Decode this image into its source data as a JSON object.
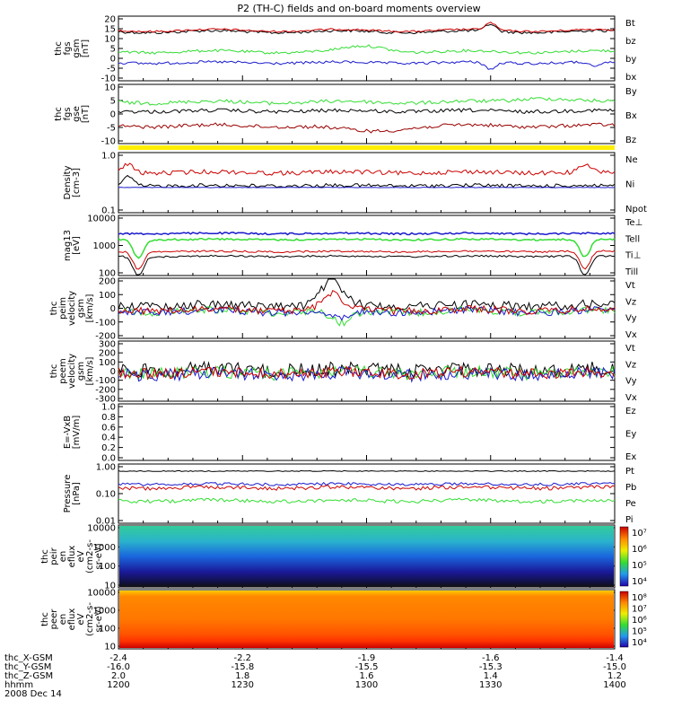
{
  "title": "P2 (TH-C) fields and on-board moments overview",
  "colors": {
    "black": "#000000",
    "red": "#cc0000",
    "green": "#33dd33",
    "blue": "#1a1acc",
    "yellow": "#ffee00",
    "darkred": "#990000"
  },
  "chart_data": {
    "type": "line",
    "x_range": [
      1200,
      1400
    ],
    "x_ticks": [
      1200,
      1230,
      1300,
      1330,
      1400
    ],
    "panels": [
      {
        "ylabel": [
          "thc",
          "fgs",
          "gsm",
          "[nT]"
        ],
        "ticks": [
          "20",
          "15",
          "10",
          "5",
          "0",
          "-5",
          "-10"
        ],
        "ylim": [
          -10,
          20
        ],
        "legend": [
          {
            "text": "Bt",
            "color": "#000000"
          },
          {
            "text": "bz",
            "color": "#cc0000"
          },
          {
            "text": "by",
            "color": "#33dd33"
          },
          {
            "text": "bx",
            "color": "#1a1acc"
          }
        ]
      },
      {
        "ylabel": [
          "thc",
          "fgs",
          "gse",
          "[nT]"
        ],
        "ticks": [
          "10",
          "5",
          "0",
          "-5",
          "-10"
        ],
        "ylim": [
          -13,
          12
        ],
        "legend": [
          {
            "text": "By",
            "color": "#33dd33"
          },
          {
            "text": "Bx",
            "color": "#000000"
          },
          {
            "text": "Bz",
            "color": "#990000"
          }
        ]
      },
      {
        "ylabel": [
          "Density",
          "[cm-3]"
        ],
        "ticks": [
          "1.0",
          "0.1"
        ],
        "ylim": [
          0.1,
          1.2
        ],
        "log": true,
        "legend": [
          {
            "text": "Ne",
            "color": "#cc0000"
          },
          {
            "text": "Ni",
            "color": "#000000"
          },
          {
            "text": "Npot",
            "color": "#1a1acc"
          }
        ]
      },
      {
        "ylabel": [
          "mag13",
          "[eV]"
        ],
        "ticks": [
          "10000",
          "1000",
          "100"
        ],
        "ylim": [
          100,
          10000
        ],
        "log": true,
        "legend": [
          {
            "text": "Te⊥",
            "color": "#cc0000"
          },
          {
            "text": "Tell",
            "color": "#000000"
          },
          {
            "text": "Ti⊥",
            "color": "#1a1acc"
          },
          {
            "text": "Till",
            "color": "#33dd33"
          }
        ]
      },
      {
        "ylabel": [
          "thc",
          "peim",
          "velocity",
          "gsm",
          "[km/s]"
        ],
        "ticks": [
          "200",
          "100",
          "0",
          "-100",
          "-200"
        ],
        "ylim": [
          -200,
          200
        ],
        "legend": [
          {
            "text": "Vt",
            "color": "#000000"
          },
          {
            "text": "Vz",
            "color": "#cc0000"
          },
          {
            "text": "Vy",
            "color": "#33dd33"
          },
          {
            "text": "Vx",
            "color": "#1a1acc"
          }
        ]
      },
      {
        "ylabel": [
          "thc",
          "peem",
          "velocity",
          "gsm",
          "[km/s]"
        ],
        "ticks": [
          "300",
          "200",
          "100",
          "0",
          "-100",
          "-200",
          "-300"
        ],
        "ylim": [
          -300,
          300
        ],
        "legend": [
          {
            "text": "Vt",
            "color": "#000000"
          },
          {
            "text": "Vz",
            "color": "#cc0000"
          },
          {
            "text": "Vy",
            "color": "#33dd33"
          },
          {
            "text": "Vx",
            "color": "#1a1acc"
          }
        ]
      },
      {
        "ylabel": [
          "E=-VxB",
          "[mV/m]"
        ],
        "ticks": [
          "1.0",
          "0.8",
          "0.6",
          "0.4",
          "0.2",
          "0.0"
        ],
        "ylim": [
          0,
          1
        ],
        "legend": [
          {
            "text": "Ez",
            "color": "#cc0000"
          },
          {
            "text": "Ey",
            "color": "#33dd33"
          },
          {
            "text": "Ex",
            "color": "#1a1acc"
          }
        ]
      },
      {
        "ylabel": [
          "Pressure",
          "[nPa]"
        ],
        "ticks": [
          "1.00",
          "0.10",
          "0.01"
        ],
        "ylim": [
          0.01,
          1
        ],
        "log": true,
        "legend": [
          {
            "text": "Pt",
            "color": "#000000"
          },
          {
            "text": "Pb",
            "color": "#cc0000"
          },
          {
            "text": "Pe",
            "color": "#33dd33"
          },
          {
            "text": "Pi",
            "color": "#1a1acc"
          }
        ]
      },
      {
        "ylabel": [
          "thc",
          "peir",
          "en",
          "eflux",
          "eV",
          "(cm2-s-",
          "sr-eV)"
        ],
        "ticks": [
          "10000",
          "1000",
          "100",
          "10"
        ],
        "ylim": [
          10,
          15000
        ],
        "log": true,
        "spectrogram": "ion",
        "colorbar": [
          "10⁷",
          "10⁶",
          "10⁵",
          "10⁴"
        ]
      },
      {
        "ylabel": [
          "thc",
          "peer",
          "en",
          "eflux",
          "eV",
          "(cm2-s-",
          "sr-eV)"
        ],
        "ticks": [
          "10000",
          "1000",
          "100",
          "10"
        ],
        "ylim": [
          10,
          15000
        ],
        "log": true,
        "spectrogram": "electron",
        "colorbar": [
          "10⁸",
          "10⁷",
          "10⁶",
          "10⁵",
          "10⁴"
        ]
      }
    ],
    "x_axis_rows": [
      {
        "label": "thc_X-GSM",
        "values": [
          "-2.4",
          "-2.2",
          "-1.9",
          "-1.6",
          "-1.4"
        ]
      },
      {
        "label": "thc_Y-GSM",
        "values": [
          "-16.0",
          "-15.8",
          "-15.5",
          "-15.3",
          "-15.0"
        ]
      },
      {
        "label": "thc_Z-GSM",
        "values": [
          "2.0",
          "1.8",
          "1.6",
          "1.4",
          "1.2"
        ]
      },
      {
        "label": "hhmm",
        "values": [
          "1200",
          "1230",
          "1300",
          "1330",
          "1400"
        ]
      }
    ],
    "date": "2008 Dec 14"
  }
}
